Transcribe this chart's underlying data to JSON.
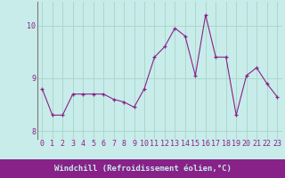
{
  "x": [
    0,
    1,
    2,
    3,
    4,
    5,
    6,
    7,
    8,
    9,
    10,
    11,
    12,
    13,
    14,
    15,
    16,
    17,
    18,
    19,
    20,
    21,
    22,
    23
  ],
  "y": [
    8.8,
    8.3,
    8.3,
    8.7,
    8.7,
    8.7,
    8.7,
    8.6,
    8.55,
    8.45,
    8.8,
    9.4,
    9.6,
    9.95,
    9.8,
    9.05,
    10.2,
    9.4,
    9.4,
    8.3,
    9.05,
    9.2,
    8.9,
    8.65
  ],
  "line_color": "#882288",
  "marker": "+",
  "marker_color": "#882288",
  "bg_color": "#c8ecea",
  "grid_color": "#aad8cc",
  "xlabel": "Windchill (Refroidissement éolien,°C)",
  "xlabel_color": "#882288",
  "tick_color": "#882288",
  "ylim": [
    7.85,
    10.45
  ],
  "yticks": [
    8,
    9,
    10
  ],
  "xlim": [
    -0.5,
    23.5
  ],
  "xticks": [
    0,
    1,
    2,
    3,
    4,
    5,
    6,
    7,
    8,
    9,
    10,
    11,
    12,
    13,
    14,
    15,
    16,
    17,
    18,
    19,
    20,
    21,
    22,
    23
  ],
  "xtick_labels": [
    "0",
    "1",
    "2",
    "3",
    "4",
    "5",
    "6",
    "7",
    "8",
    "9",
    "10",
    "11",
    "12",
    "13",
    "14",
    "15",
    "16",
    "17",
    "18",
    "19",
    "20",
    "21",
    "22",
    "23"
  ],
  "left_spine_color": "#777777",
  "xlabel_fontsize": 6.5,
  "tick_fontsize": 6.0,
  "xlabel_bg_color": "#882288",
  "xlabel_text_color": "#c8ecea"
}
